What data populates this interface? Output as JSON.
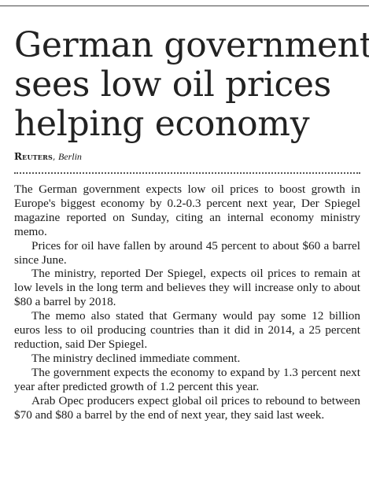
{
  "article": {
    "headline_lines": [
      "German government",
      "sees low oil prices",
      "helping economy"
    ],
    "byline": {
      "agency": "Reuters",
      "separator": ",",
      "city": "Berlin"
    },
    "paragraphs": [
      "The German government expects low oil prices to boost growth in Europe's biggest economy by 0.2-0.3 percent next year, Der Spiegel magazine reported on Sunday, citing an internal economy ministry memo.",
      "Prices for oil have fallen by around 45 percent to about $60 a barrel since June.",
      "The ministry, reported Der Spiegel, expects oil prices to remain at low levels in the long term and believes they will increase only to about $80 a barrel by 2018.",
      "The memo also stated that Germany would pay some 12 billion euros less to oil producing countries than it did in 2014, a 25 percent reduction, said Der Spiegel.",
      "The ministry declined immediate comment.",
      "The government expects the economy to expand by 1.3 percent next year after predicted growth of 1.2 per­cent this year.",
      "Arab Opec producers expect global oil prices to rebound to between $70 and $80 a barrel by the end of next year, they said last week."
    ]
  }
}
